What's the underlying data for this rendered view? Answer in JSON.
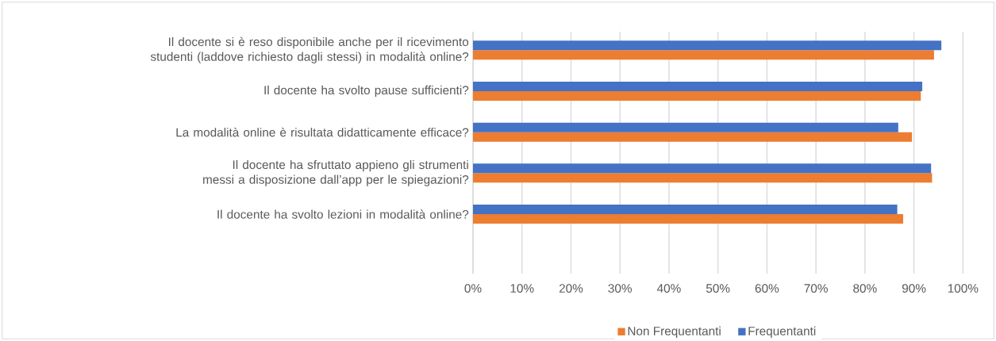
{
  "chart_data": {
    "type": "bar",
    "orientation": "horizontal",
    "categories": [
      "Il docente si è reso disponibile anche per il ricevimento studenti (laddove richiesto dagli stessi) in modalità online?",
      "Il docente ha svolto pause sufficienti?",
      "La modalità online è risultata didatticamente efficace?",
      "Il docente ha sfruttato appieno gli strumenti messi a disposizione dall’app per le spiegazioni?",
      "Il docente ha svolto lezioni in modalità online?"
    ],
    "series": [
      {
        "name": "Non Frequentanti",
        "color": "#ed7d31",
        "values": [
          94.1,
          91.4,
          89.6,
          93.7,
          87.8
        ]
      },
      {
        "name": "Frequentanti",
        "color": "#4472c4",
        "values": [
          95.6,
          91.7,
          86.8,
          93.5,
          86.6
        ]
      }
    ],
    "xlim": [
      0,
      100
    ],
    "xticks": [
      {
        "value": 0,
        "label": "0%"
      },
      {
        "value": 10,
        "label": "10%"
      },
      {
        "value": 20,
        "label": "20%"
      },
      {
        "value": 30,
        "label": "30%"
      },
      {
        "value": 40,
        "label": "40%"
      },
      {
        "value": 50,
        "label": "50%"
      },
      {
        "value": 60,
        "label": "60%"
      },
      {
        "value": 70,
        "label": "70%"
      },
      {
        "value": 80,
        "label": "80%"
      },
      {
        "value": 90,
        "label": "90%"
      },
      {
        "value": 100,
        "label": "100%"
      }
    ],
    "grid": "x",
    "legend": "bottom"
  }
}
